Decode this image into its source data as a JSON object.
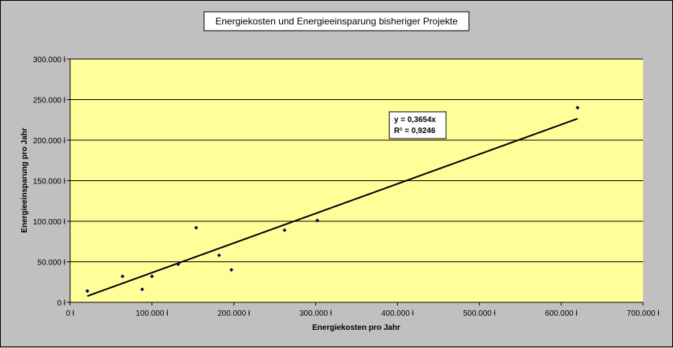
{
  "chart_data": {
    "type": "scatter",
    "title": "Energiekosten und Energieeinsparung bisheriger Projekte",
    "xlabel": "Energiekosten pro Jahr",
    "ylabel": "Energieeinsparung pro Jahr",
    "xlim": [
      0,
      700000
    ],
    "ylim": [
      0,
      300000
    ],
    "x_ticks": [
      0,
      100000,
      200000,
      300000,
      400000,
      500000,
      600000,
      700000
    ],
    "y_ticks": [
      0,
      50000,
      100000,
      150000,
      200000,
      250000,
      300000
    ],
    "x_tick_labels": [
      "0 ł",
      "100.000 ł",
      "200.000 ł",
      "300.000 ł",
      "400.000 ł",
      "500.000 ł",
      "600.000 ł",
      "700.000 ł"
    ],
    "y_tick_labels": [
      "0 ł",
      "50.000 ł",
      "100.000 ł",
      "150.000 ł",
      "200.000 ł",
      "250.000 ł",
      "300.000 ł"
    ],
    "grid": "horizontal",
    "series": [
      {
        "points": [
          {
            "x": 21000,
            "y": 14000
          },
          {
            "x": 64000,
            "y": 32000
          },
          {
            "x": 88000,
            "y": 16000
          },
          {
            "x": 100000,
            "y": 32000
          },
          {
            "x": 132000,
            "y": 47000
          },
          {
            "x": 154000,
            "y": 92000
          },
          {
            "x": 182000,
            "y": 58000
          },
          {
            "x": 197000,
            "y": 40000
          },
          {
            "x": 262000,
            "y": 89000
          },
          {
            "x": 302000,
            "y": 101000
          },
          {
            "x": 620000,
            "y": 240000
          }
        ]
      }
    ],
    "trendline": {
      "type": "linear",
      "slope": 0.3654,
      "x_range": [
        21000,
        620000
      ],
      "equation_label": "y = 0,3654x",
      "r2_label": "R² = 0,9246"
    },
    "colors": {
      "figure_background": "#c0c0c0",
      "plot_background": "#ffff99",
      "gridline": "#000000",
      "marker": "#000066",
      "trendline": "#000000"
    }
  }
}
